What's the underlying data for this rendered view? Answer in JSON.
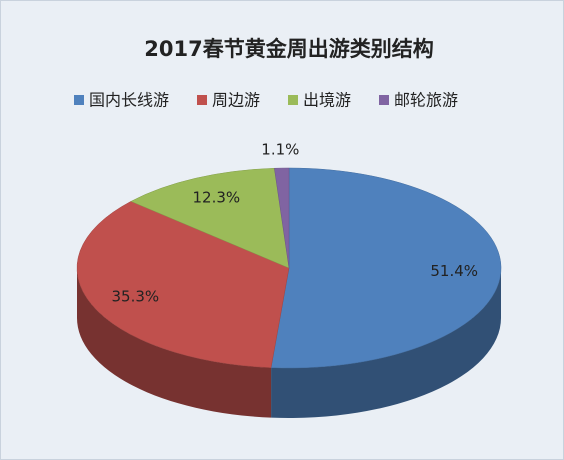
{
  "chart_data": {
    "type": "pie",
    "title": "2017春节黄金周出游类别结构",
    "categories": [
      "国内长线游",
      "周边游",
      "出境游",
      "邮轮旅游"
    ],
    "values": [
      51.4,
      35.3,
      12.3,
      1.1
    ],
    "value_labels": [
      "51.4%",
      "35.3%",
      "12.3%",
      "1.1%"
    ],
    "colors": [
      "#4f81bd",
      "#c0504d",
      "#9bbb59",
      "#8064a2"
    ],
    "legend": "top"
  }
}
